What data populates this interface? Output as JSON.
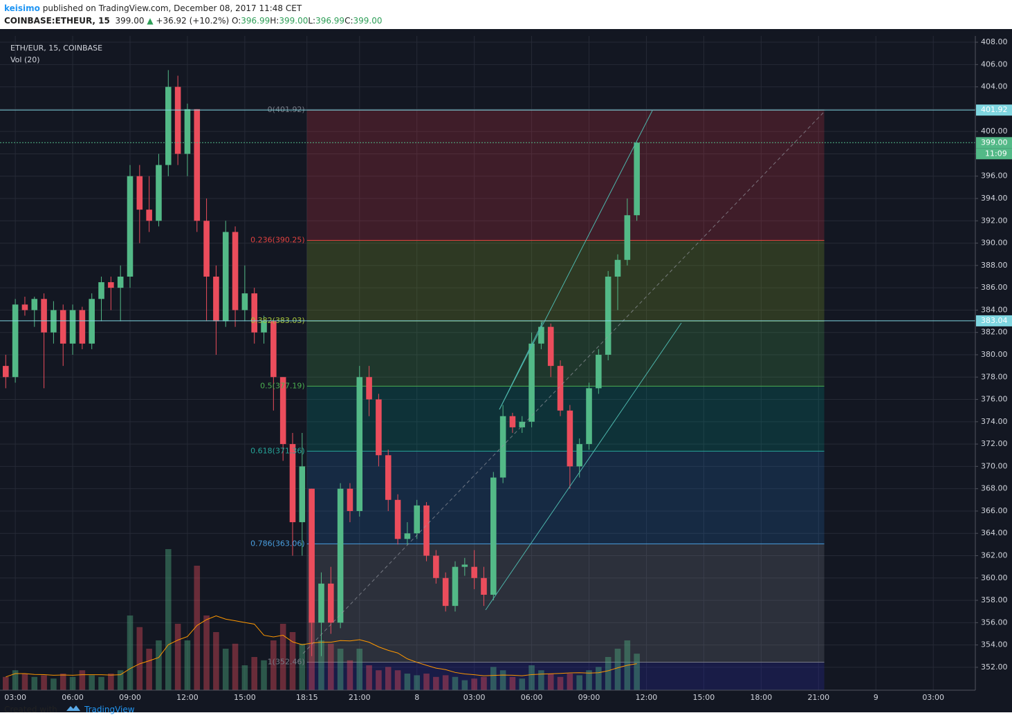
{
  "header": {
    "author": "keisimo",
    "published": "published on TradingView.com, December 08, 2017 11:48 CET",
    "symbol": "COINBASE:ETHEUR, 15",
    "last": "399.00",
    "arrow": "▲",
    "change": "+36.92 (+10.2%)",
    "ohlc": [
      {
        "k": "O:",
        "v": "396.99"
      },
      {
        "k": "H:",
        "v": "399.00"
      },
      {
        "k": "L:",
        "v": "396.99"
      },
      {
        "k": "C:",
        "v": "399.00"
      }
    ]
  },
  "footer": {
    "created": "Created with",
    "brand": "TradingView"
  },
  "chart_data": {
    "type": "candlestick",
    "title": "ETH/EUR, 15, COINBASE",
    "subtitle": "Vol (20)",
    "up_color": "#53b987",
    "down_color": "#eb4d5c",
    "grid": true,
    "x": [
      2.5,
      3,
      3.5,
      4,
      4.5,
      5,
      5.5,
      6,
      6.5,
      7,
      7.5,
      8,
      8.5,
      9,
      9.5,
      10,
      10.5,
      11,
      11.5,
      12,
      12.5,
      13,
      13.5,
      14,
      14.5,
      15,
      15.5,
      16,
      16.5,
      17,
      17.5,
      18,
      18.5,
      19,
      19.5,
      20,
      20.5,
      21,
      21.5,
      22,
      22.5,
      23,
      23.5,
      24,
      24.5,
      25,
      25.5,
      26,
      26.5,
      27,
      27.5,
      28,
      28.5,
      29,
      29.5,
      30,
      30.5,
      31,
      31.5,
      32,
      32.5,
      33,
      33.5,
      34,
      34.5,
      35,
      35.5
    ],
    "open": [
      379,
      378,
      384.5,
      384,
      385,
      382,
      384,
      381,
      384,
      381,
      385,
      386.5,
      386,
      387,
      396,
      393,
      392,
      397,
      404,
      398,
      402,
      392,
      387,
      383,
      391,
      384,
      385.5,
      382,
      383,
      378,
      372,
      365,
      368,
      356,
      359.5,
      356,
      368,
      366,
      378,
      376,
      371,
      367,
      363.5,
      364,
      366.5,
      362,
      360,
      357.5,
      361,
      361,
      360,
      358.5,
      369,
      374.5,
      373.5,
      374,
      381,
      382.5,
      379,
      375,
      370,
      372,
      377,
      380,
      387,
      388.5,
      392.5
    ],
    "high": [
      380,
      385,
      385.2,
      385.2,
      385.5,
      384.8,
      384.5,
      384.5,
      384.3,
      385.5,
      387,
      387,
      388,
      397,
      397,
      396,
      398,
      405.5,
      405,
      402.5,
      402,
      394,
      388,
      392,
      391.5,
      388,
      386,
      383.5,
      383,
      378,
      373,
      373,
      368,
      360.5,
      361,
      368.5,
      368.5,
      379,
      379,
      376.5,
      371.5,
      367.5,
      365,
      367,
      366.8,
      362.5,
      360.5,
      361.5,
      361.8,
      362.5,
      361,
      369.5,
      375.5,
      374.8,
      374.5,
      382,
      383,
      382.8,
      379.5,
      375.5,
      372.5,
      377.5,
      380.5,
      387.5,
      389,
      394,
      399
    ],
    "low": [
      377,
      377.5,
      383.5,
      382.5,
      377,
      381,
      379,
      380,
      380.5,
      380.5,
      383,
      384,
      383,
      386,
      390,
      391,
      391.5,
      396,
      397,
      396,
      391,
      383,
      380,
      382.5,
      382.5,
      383,
      381,
      381,
      375,
      370.5,
      362,
      362,
      353,
      353,
      355,
      355.5,
      365,
      365.5,
      374.5,
      370,
      366,
      363,
      363,
      363.5,
      361.5,
      359.5,
      357,
      357,
      360.2,
      359,
      357.5,
      358,
      368.5,
      373,
      373,
      373.5,
      380.5,
      378,
      374.5,
      368,
      369,
      371.5,
      376.5,
      379.5,
      384,
      388,
      392
    ],
    "close": [
      378,
      384.5,
      384,
      385,
      382,
      384,
      381,
      384,
      381,
      385,
      386.5,
      386,
      387,
      396,
      393,
      392,
      397,
      404,
      398,
      402,
      392,
      387,
      383,
      391,
      384,
      385.5,
      382,
      383,
      378,
      372,
      365,
      370,
      356,
      359.5,
      356,
      368,
      366,
      378,
      376,
      371,
      367,
      363.5,
      364,
      366.5,
      362,
      360,
      357.5,
      361,
      361.2,
      360,
      358.5,
      369,
      374.5,
      373.5,
      374,
      381,
      382.5,
      379,
      375,
      370,
      372,
      377,
      380,
      387,
      388.5,
      392.5,
      399
    ],
    "volume": [
      8,
      12,
      10,
      8,
      9,
      7,
      10,
      8,
      12,
      9,
      8,
      10,
      12,
      45,
      38,
      25,
      30,
      85,
      40,
      30,
      75,
      45,
      35,
      25,
      28,
      15,
      20,
      18,
      30,
      40,
      35,
      28,
      45,
      30,
      28,
      25,
      18,
      25,
      15,
      12,
      14,
      12,
      10,
      9,
      10,
      8,
      9,
      8,
      6,
      7,
      8,
      14,
      12,
      8,
      7,
      15,
      12,
      10,
      8,
      10,
      9,
      12,
      14,
      20,
      25,
      30,
      22
    ],
    "vlim": [
      0,
      100
    ],
    "xlim": [
      2.2,
      53.2
    ],
    "ylim": [
      349.95,
      408.56
    ],
    "xticks": [
      {
        "value": 3,
        "label": "03:00"
      },
      {
        "value": 6,
        "label": "06:00"
      },
      {
        "value": 9,
        "label": "09:00"
      },
      {
        "value": 12,
        "label": "12:00"
      },
      {
        "value": 15,
        "label": "15:00"
      },
      {
        "value": 18.25,
        "label": "18:15"
      },
      {
        "value": 21,
        "label": "21:00"
      },
      {
        "value": 24,
        "label": "8"
      },
      {
        "value": 27,
        "label": "03:00"
      },
      {
        "value": 30,
        "label": "06:00"
      },
      {
        "value": 33,
        "label": "09:00"
      },
      {
        "value": 36,
        "label": "12:00"
      },
      {
        "value": 39,
        "label": "15:00"
      },
      {
        "value": 42,
        "label": "18:00"
      },
      {
        "value": 45,
        "label": "21:00"
      },
      {
        "value": 48,
        "label": "9"
      },
      {
        "value": 51,
        "label": "03:00"
      }
    ],
    "yticks": [
      {
        "value": 352,
        "label": "352.00"
      },
      {
        "value": 354,
        "label": "354.00"
      },
      {
        "value": 356,
        "label": "356.00"
      },
      {
        "value": 358,
        "label": "358.00"
      },
      {
        "value": 360,
        "label": "360.00"
      },
      {
        "value": 362,
        "label": "362.00"
      },
      {
        "value": 364,
        "label": "364.00"
      },
      {
        "value": 366,
        "label": "366.00"
      },
      {
        "value": 368,
        "label": "368.00"
      },
      {
        "value": 370,
        "label": "370.00"
      },
      {
        "value": 372,
        "label": "372.00"
      },
      {
        "value": 374,
        "label": "374.00"
      },
      {
        "value": 376,
        "label": "376.00"
      },
      {
        "value": 378,
        "label": "378.00"
      },
      {
        "value": 380,
        "label": "380.00"
      },
      {
        "value": 382,
        "label": "382.00"
      },
      {
        "value": 384,
        "label": "384.00"
      },
      {
        "value": 386,
        "label": "386.00"
      },
      {
        "value": 388,
        "label": "388.00"
      },
      {
        "value": 390,
        "label": "390.00"
      },
      {
        "value": 392,
        "label": "392.00"
      },
      {
        "value": 394,
        "label": "394.00"
      },
      {
        "value": 396,
        "label": "396.00"
      },
      {
        "value": 398,
        "label": "398.00"
      },
      {
        "value": 400,
        "label": "400.00"
      },
      {
        "value": 402,
        "label": "402.00"
      },
      {
        "value": 404,
        "label": "404.00"
      },
      {
        "value": 406,
        "label": "406.00"
      },
      {
        "value": 408,
        "label": "408.00"
      }
    ],
    "fib_range_x": [
      18.25,
      45.3
    ],
    "fib_levels": [
      {
        "value": 401.92,
        "label": "0(401.92)",
        "color": "#787b86",
        "fill": "rgba(242,54,69,0.2)"
      },
      {
        "value": 390.25,
        "label": "0.236(390.25)",
        "color": "#e0413f",
        "fill": "rgba(129,160,40,0.25)"
      },
      {
        "value": 383.03,
        "label": "0.382(383.03)",
        "color": "#a5c43a",
        "fill": "rgba(76,175,80,0.22)"
      },
      {
        "value": 377.19,
        "label": "0.5(377.19)",
        "color": "#4caf50",
        "fill": "rgba(0,150,136,0.22)"
      },
      {
        "value": 371.36,
        "label": "0.618(371.36)",
        "color": "#26a69a",
        "fill": "rgba(33,120,200,0.2)"
      },
      {
        "value": 363.06,
        "label": "0.786(363.06)",
        "color": "#4a9fe0",
        "fill": "rgba(120,123,134,0.25)"
      },
      {
        "value": 352.46,
        "label": "1(352.46)",
        "color": "#787b86",
        "fill": "rgba(40,40,160,0.3)"
      }
    ],
    "price_lines": [
      {
        "value": 401.92,
        "label": "401.92",
        "color": "#7fd6e0",
        "style": "solid"
      },
      {
        "value": 383.04,
        "label": "383.04",
        "color": "#7fd6e0",
        "style": "solid"
      },
      {
        "value": 399,
        "label": "399.00",
        "color": "#53b987",
        "style": "dotted"
      }
    ],
    "countdown": "11:09"
  }
}
